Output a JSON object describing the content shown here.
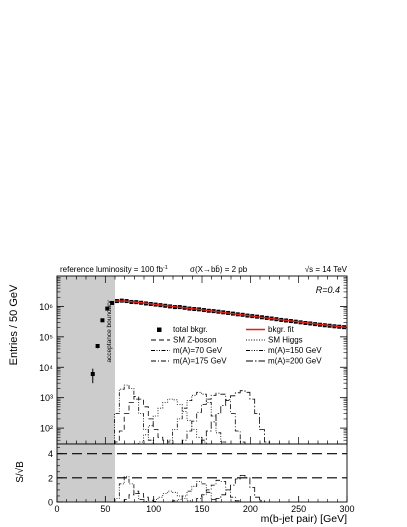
{
  "header": {
    "luminosity_label": "reference luminosity = 100 fb",
    "luminosity_sup": "-1",
    "xsec_label": "σ(X→bb̄) = 2 pb",
    "energy_label": "√s = 14 TeV"
  },
  "chart_data": [
    {
      "type": "scatter",
      "panel": "main",
      "xlabel": "m(b-jet pair) [GeV]",
      "ylabel": "Entries / 50 GeV",
      "xlim": [
        0,
        300
      ],
      "ylim": [
        30,
        10000000
      ],
      "yscale": "log",
      "yticks": [
        100,
        1000,
        10000,
        100000,
        1000000
      ],
      "ytick_labels": [
        "10²",
        "10³",
        "10⁴",
        "10⁵",
        "10⁶"
      ],
      "annotation": "R=0.4",
      "shaded_region": {
        "x": [
          0,
          60
        ],
        "label": "acceptance boundary"
      },
      "legend": [
        {
          "label": "total bkgr.",
          "style": "marker"
        },
        {
          "label": "bkgr. fit",
          "style": "red-line"
        },
        {
          "label": "SM Z-boson",
          "style": "dash"
        },
        {
          "label": "SM Higgs",
          "style": "dot"
        },
        {
          "label": "m(A)=70 GeV",
          "style": "dashdotdot"
        },
        {
          "label": "m(A)=150 GeV",
          "style": "dashdotdotdot"
        },
        {
          "label": "m(A)=175 GeV",
          "style": "dashdot"
        },
        {
          "label": "m(A)=200 GeV",
          "style": "dashdotlong"
        }
      ],
      "series": [
        {
          "name": "total bkgr.",
          "x": [
            37,
            42,
            47,
            52,
            57,
            62,
            67,
            72,
            77,
            82,
            87,
            92,
            97,
            102,
            107,
            112,
            117,
            122,
            127,
            132,
            137,
            142,
            147,
            152,
            157,
            162,
            167,
            172,
            177,
            182,
            187,
            192,
            197,
            202,
            207,
            212,
            217,
            222,
            227,
            232,
            237,
            242,
            247,
            252,
            257,
            262,
            267,
            272,
            277,
            282,
            287,
            292,
            297
          ],
          "y": [
            6000,
            50000,
            350000,
            850000,
            1300000,
            1500000,
            1550000,
            1500000,
            1400000,
            1380000,
            1320000,
            1250000,
            1200000,
            1150000,
            1100000,
            1050000,
            1000000,
            950000,
            950000,
            900000,
            850000,
            820000,
            800000,
            760000,
            720000,
            700000,
            670000,
            640000,
            610000,
            580000,
            550000,
            530000,
            500000,
            480000,
            460000,
            440000,
            420000,
            400000,
            380000,
            360000,
            345000,
            330000,
            315000,
            300000,
            285000,
            275000,
            262000,
            250000,
            240000,
            232000,
            222000,
            215000,
            208000
          ],
          "yerr_low": [
            3000,
            8000
          ]
        },
        {
          "name": "bkgr. fit",
          "x": [
            60,
            70,
            80,
            90,
            100,
            120,
            140,
            160,
            180,
            200,
            220,
            240,
            260,
            280,
            300
          ],
          "y": [
            1500000,
            1520000,
            1400000,
            1300000,
            1180000,
            990000,
            840000,
            710000,
            590000,
            490000,
            405000,
            340000,
            285000,
            240000,
            205000
          ]
        },
        {
          "name": "SM Z-boson",
          "x": [
            62,
            67,
            72,
            77,
            82,
            87,
            92,
            97,
            102,
            107,
            112,
            117,
            122,
            127
          ],
          "y": [
            35,
            80,
            300,
            700,
            1100,
            900,
            500,
            200,
            90,
            50,
            40,
            35,
            30,
            30
          ]
        },
        {
          "name": "SM Higgs",
          "x": [
            87,
            92,
            97,
            102,
            107,
            112,
            117,
            122,
            127,
            132,
            137,
            142,
            147,
            152,
            157
          ],
          "y": [
            35,
            60,
            120,
            250,
            450,
            700,
            900,
            850,
            600,
            350,
            180,
            90,
            50,
            35,
            30
          ]
        },
        {
          "name": "m(A)=70 GeV",
          "x": [
            62,
            67,
            72,
            77,
            82,
            87,
            92,
            97,
            102
          ],
          "y": [
            300,
            1900,
            2600,
            2000,
            900,
            300,
            90,
            40,
            30
          ]
        },
        {
          "name": "m(A)=150 GeV",
          "x": [
            117,
            122,
            127,
            132,
            137,
            142,
            147,
            152,
            157,
            162,
            167,
            172
          ],
          "y": [
            40,
            90,
            200,
            450,
            800,
            1200,
            1500,
            1300,
            700,
            250,
            70,
            35
          ]
        },
        {
          "name": "m(A)=175 GeV",
          "x": [
            132,
            137,
            142,
            147,
            152,
            157,
            162,
            167,
            172,
            177,
            182,
            187,
            192
          ],
          "y": [
            40,
            80,
            170,
            330,
            600,
            900,
            1200,
            1400,
            1300,
            800,
            300,
            80,
            35
          ]
        },
        {
          "name": "m(A)=200 GeV",
          "x": [
            152,
            157,
            162,
            167,
            172,
            177,
            182,
            187,
            192,
            197,
            202,
            207,
            212,
            217
          ],
          "y": [
            40,
            80,
            160,
            300,
            550,
            850,
            1150,
            1450,
            1700,
            1500,
            900,
            300,
            90,
            35
          ]
        }
      ]
    },
    {
      "type": "line",
      "panel": "ratio",
      "ylabel": "S/√B",
      "xlabel": "m(b-jet pair) [GeV]",
      "xlim": [
        0,
        300
      ],
      "ylim": [
        0,
        4.8
      ],
      "yticks": [
        0,
        2,
        4
      ],
      "xticks": [
        0,
        50,
        100,
        150,
        200,
        250,
        300
      ],
      "reference_lines": [
        2,
        4
      ],
      "series": [
        {
          "name": "m(A)=70 GeV",
          "x": [
            62,
            67,
            72,
            77,
            82,
            87,
            92
          ],
          "y": [
            0.3,
            1.5,
            2.1,
            1.5,
            0.7,
            0.2,
            0.05
          ]
        },
        {
          "name": "SM Higgs",
          "x": [
            102,
            107,
            112,
            117,
            122,
            127,
            132,
            137
          ],
          "y": [
            0.2,
            0.4,
            0.7,
            0.9,
            0.8,
            0.5,
            0.3,
            0.1
          ]
        },
        {
          "name": "m(A)=150 GeV",
          "x": [
            122,
            127,
            132,
            137,
            142,
            147,
            152,
            157,
            162
          ],
          "y": [
            0.1,
            0.2,
            0.5,
            0.9,
            1.3,
            1.7,
            1.5,
            0.8,
            0.2
          ]
        },
        {
          "name": "m(A)=175 GeV",
          "x": [
            147,
            152,
            157,
            162,
            167,
            172,
            177,
            182,
            187
          ],
          "y": [
            0.3,
            0.6,
            1.0,
            1.4,
            1.8,
            1.7,
            1.0,
            0.4,
            0.1
          ]
        },
        {
          "name": "m(A)=200 GeV",
          "x": [
            167,
            172,
            177,
            182,
            187,
            192,
            197,
            202,
            207,
            212
          ],
          "y": [
            0.3,
            0.6,
            1.0,
            1.4,
            1.9,
            2.2,
            2.0,
            1.2,
            0.4,
            0.1
          ]
        },
        {
          "name": "SM Z-boson",
          "x": [
            72,
            77,
            82,
            87,
            92,
            97,
            102
          ],
          "y": [
            0.2,
            0.6,
            0.9,
            0.7,
            0.4,
            0.15,
            0.05
          ]
        }
      ]
    }
  ]
}
